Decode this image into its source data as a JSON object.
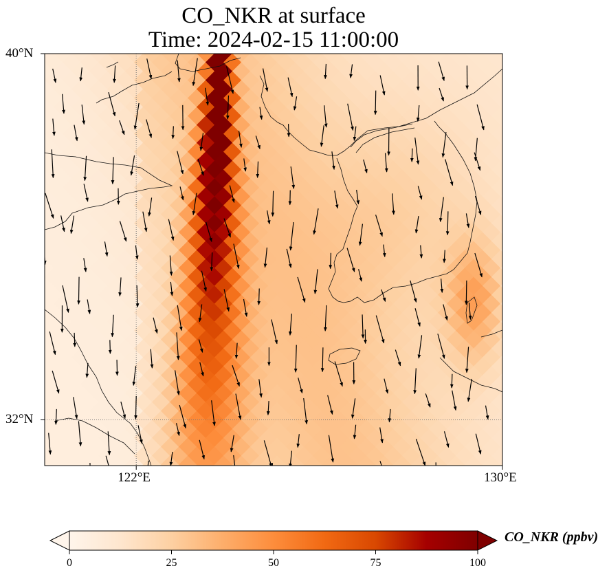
{
  "title": {
    "line1": "CO_NKR at surface",
    "line2": "Time: 2024-02-15 11:00:00"
  },
  "map": {
    "extent": {
      "lon_min": 120,
      "lon_max": 130,
      "lat_min": 31,
      "lat_max": 40
    },
    "lat_labels": [
      {
        "value": 40,
        "text": "40°N"
      },
      {
        "value": 32,
        "text": "32°N"
      }
    ],
    "lon_labels": [
      {
        "value": 122,
        "text": "122°E"
      },
      {
        "value": 130,
        "text": "130°E"
      }
    ],
    "gridlines": {
      "lon": [
        122
      ],
      "lat": [
        32
      ],
      "style": "dotted"
    },
    "field": "CO_NKR concentration",
    "wind_vectors": "shown"
  },
  "colorbar": {
    "label": "CO_NKR (ppbv)",
    "min": 0,
    "max": 100,
    "extend": "both",
    "ticks": [
      {
        "value": 0,
        "text": "0"
      },
      {
        "value": 25,
        "text": "25"
      },
      {
        "value": 50,
        "text": "50"
      },
      {
        "value": 75,
        "text": "75"
      },
      {
        "value": 100,
        "text": "100"
      }
    ],
    "colormap": [
      "#fff5eb",
      "#fee6ce",
      "#fdd0a2",
      "#fdae6b",
      "#fd8d3c",
      "#f16913",
      "#d94801",
      "#a50000",
      "#7f0000"
    ]
  }
}
